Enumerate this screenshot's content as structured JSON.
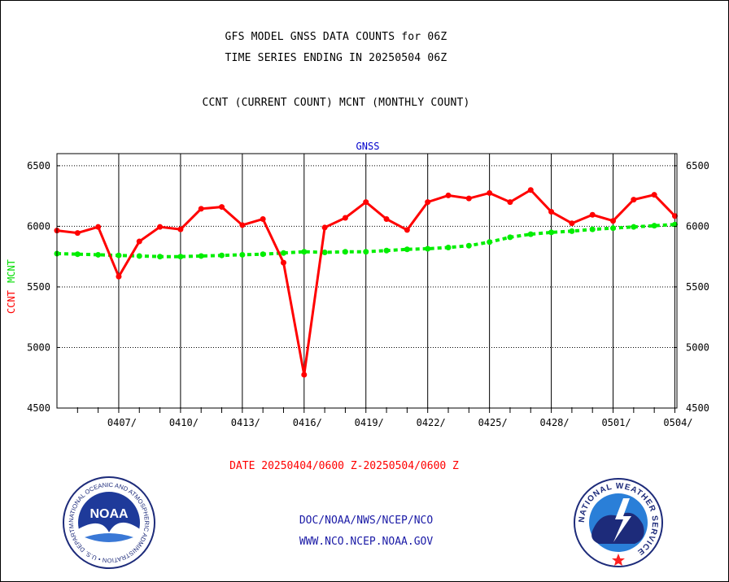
{
  "header": {
    "title_line1": "GFS MODEL GNSS DATA COUNTS for 06Z",
    "title_line2": "TIME SERIES ENDING IN 20250504 06Z",
    "subtitle": "CCNT (CURRENT COUNT) MCNT (MONTHLY COUNT)"
  },
  "footer": {
    "date_range": "DATE 20250404/0600 Z-20250504/0600 Z",
    "org_path": "DOC/NOAA/NWS/NCEP/NCO",
    "website": "WWW.NCO.NCEP.NOAA.GOV",
    "noaa_logo_text": "NOAA",
    "noaa_ring_text": "NATIONAL OCEANIC AND ATMOSPHERIC ADMINISTRATION • U.S. DEPARTMENT OF COMMERCE",
    "nws_ring_text": "NATIONAL WEATHER SERVICE"
  },
  "colors": {
    "ccnt": "#ff0000",
    "mcnt": "#00ee00",
    "panel_title": "#0000cc"
  },
  "chart_data": {
    "type": "line",
    "title": "GNSS",
    "ylabel_left": [
      "CCNT",
      "MCNT"
    ],
    "ylim": [
      4500,
      6600
    ],
    "y_ticks": [
      4500,
      5000,
      5500,
      6000,
      6500
    ],
    "x_ticks": [
      "0407/",
      "0410/",
      "0413/",
      "0416/",
      "0419/",
      "0422/",
      "0425/",
      "0428/",
      "0501/",
      "0504/"
    ],
    "x_tick_days": [
      3,
      6,
      9,
      12,
      15,
      18,
      21,
      24,
      27,
      30
    ],
    "xlim_days": [
      0,
      30.1
    ],
    "grid": true,
    "series": [
      {
        "name": "CCNT",
        "days": [
          0,
          1,
          2,
          3,
          4,
          5,
          6,
          7,
          8,
          9,
          10,
          11,
          12,
          13,
          14,
          15,
          16,
          17,
          18,
          19,
          20,
          21,
          22,
          23,
          24,
          25,
          26,
          27,
          28,
          29,
          30
        ],
        "values": [
          5965,
          5945,
          5995,
          5585,
          5875,
          5995,
          5975,
          6145,
          6160,
          6010,
          6060,
          5700,
          4775,
          5990,
          6070,
          6200,
          6060,
          5970,
          6200,
          6255,
          6230,
          6275,
          6200,
          6300,
          6120,
          6025,
          6095,
          6045,
          6220,
          6260,
          6085
        ]
      },
      {
        "name": "MCNT",
        "days": [
          0,
          1,
          2,
          3,
          4,
          5,
          6,
          7,
          8,
          9,
          10,
          11,
          12,
          13,
          14,
          15,
          16,
          17,
          18,
          19,
          20,
          21,
          22,
          23,
          24,
          25,
          26,
          27,
          28,
          29,
          30
        ],
        "values": [
          5775,
          5770,
          5765,
          5760,
          5755,
          5750,
          5750,
          5755,
          5760,
          5765,
          5770,
          5780,
          5790,
          5785,
          5790,
          5790,
          5800,
          5810,
          5815,
          5825,
          5840,
          5870,
          5910,
          5935,
          5950,
          5960,
          5975,
          5985,
          5995,
          6005,
          6015
        ]
      }
    ]
  }
}
